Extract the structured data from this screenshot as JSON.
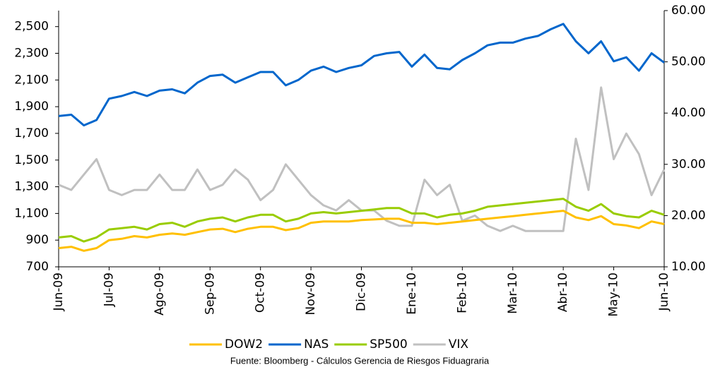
{
  "chart_data": {
    "type": "line",
    "x": [
      0,
      0.25,
      0.5,
      0.75,
      1,
      1.25,
      1.5,
      1.75,
      2,
      2.25,
      2.5,
      2.75,
      3,
      3.25,
      3.5,
      3.75,
      4,
      4.25,
      4.5,
      4.75,
      5,
      5.25,
      5.5,
      5.75,
      6,
      6.25,
      6.5,
      6.75,
      7,
      7.25,
      7.5,
      7.75,
      8,
      8.25,
      8.5,
      8.75,
      9,
      9.25,
      9.5,
      9.75,
      10,
      10.25,
      10.5,
      10.75,
      11,
      11.25,
      11.5,
      11.75,
      12
    ],
    "xlim": [
      0,
      12
    ],
    "xticks": [
      {
        "value": 0,
        "label": "Jun-09"
      },
      {
        "value": 1,
        "label": "Jul-09"
      },
      {
        "value": 2,
        "label": "Ago-09"
      },
      {
        "value": 3,
        "label": "Sep-09"
      },
      {
        "value": 4,
        "label": "Oct-09"
      },
      {
        "value": 5,
        "label": "Nov-09"
      },
      {
        "value": 6,
        "label": "Dic-09"
      },
      {
        "value": 7,
        "label": "Ene-10"
      },
      {
        "value": 8,
        "label": "Feb-10"
      },
      {
        "value": 9,
        "label": "Mar-10"
      },
      {
        "value": 10,
        "label": "Abr-10"
      },
      {
        "value": 11,
        "label": "May-10"
      },
      {
        "value": 12,
        "label": "Jun-10"
      }
    ],
    "ylim": [
      700,
      2620
    ],
    "yticks": [
      700,
      900,
      {
        "value": 1100,
        "label": "1,100"
      },
      {
        "value": 1300,
        "label": "1,300"
      },
      {
        "value": 1500,
        "label": "1,500"
      },
      {
        "value": 1700,
        "label": "1,700"
      },
      {
        "value": 1900,
        "label": "1,900"
      },
      {
        "value": 2100,
        "label": "2,100"
      },
      {
        "value": 2300,
        "label": "2,300"
      },
      {
        "value": 2500,
        "label": "2,500"
      }
    ],
    "y2lim": [
      10,
      60
    ],
    "y2ticks": [
      {
        "value": 10,
        "label": "10.00"
      },
      {
        "value": 20,
        "label": "20.00"
      },
      {
        "value": 30,
        "label": "30.00"
      },
      {
        "value": 40,
        "label": "40.00"
      },
      {
        "value": 50,
        "label": "50.00"
      },
      {
        "value": 60,
        "label": "60.00"
      }
    ],
    "series": [
      {
        "name": "DOW2",
        "color": "#FFC000",
        "values": [
          840,
          850,
          820,
          840,
          900,
          910,
          930,
          920,
          940,
          950,
          940,
          960,
          980,
          985,
          960,
          985,
          1000,
          1000,
          975,
          990,
          1030,
          1040,
          1040,
          1040,
          1050,
          1055,
          1060,
          1060,
          1030,
          1030,
          1020,
          1030,
          1040,
          1050,
          1060,
          1070,
          1080,
          1090,
          1100,
          1110,
          1120,
          1070,
          1050,
          1080,
          1020,
          1010,
          990,
          1040,
          1020
        ]
      },
      {
        "name": "NAS",
        "color": "#0066CC",
        "values": [
          1830,
          1840,
          1760,
          1800,
          1960,
          1980,
          2010,
          1980,
          2020,
          2030,
          2000,
          2080,
          2130,
          2140,
          2080,
          2120,
          2160,
          2160,
          2060,
          2100,
          2170,
          2200,
          2160,
          2190,
          2210,
          2280,
          2300,
          2310,
          2200,
          2290,
          2190,
          2180,
          2250,
          2300,
          2360,
          2380,
          2380,
          2410,
          2430,
          2480,
          2520,
          2390,
          2300,
          2390,
          2240,
          2270,
          2170,
          2300,
          2230
        ]
      },
      {
        "name": "SP500",
        "color": "#99CC00",
        "values": [
          920,
          930,
          890,
          920,
          980,
          990,
          1000,
          980,
          1020,
          1030,
          1000,
          1040,
          1060,
          1070,
          1040,
          1070,
          1090,
          1090,
          1040,
          1060,
          1100,
          1110,
          1100,
          1110,
          1120,
          1130,
          1140,
          1140,
          1100,
          1100,
          1070,
          1090,
          1100,
          1120,
          1150,
          1160,
          1170,
          1180,
          1190,
          1200,
          1210,
          1150,
          1120,
          1170,
          1100,
          1080,
          1070,
          1120,
          1090
        ]
      },
      {
        "name": "VIX",
        "color": "#C0C0C0",
        "axis": "y2",
        "values": [
          26,
          25,
          28,
          31,
          25,
          24,
          25,
          25,
          28,
          25,
          25,
          29,
          25,
          26,
          29,
          27,
          23,
          25,
          30,
          27,
          24,
          22,
          21,
          23,
          21,
          21,
          19,
          18,
          18,
          27,
          24,
          26,
          19,
          20,
          18,
          17,
          18,
          17,
          17,
          17,
          17,
          35,
          25,
          45,
          31,
          36,
          32,
          24,
          29
        ]
      }
    ],
    "source": "Fuente: Bloomberg - Cálculos Gerencia de Riesgos Fiduagraria"
  }
}
